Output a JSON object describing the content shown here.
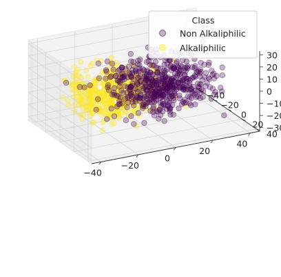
{
  "chart_data": {
    "type": "scatter",
    "projection": "3d",
    "title": "",
    "xlabel": "",
    "ylabel": "",
    "zlabel": "",
    "xlim": [
      -45,
      45
    ],
    "ylim": [
      -45,
      45
    ],
    "zlim": [
      -33,
      33
    ],
    "x_ticks": [
      "−40",
      "−20",
      "0",
      "20",
      "40"
    ],
    "y_ticks": [
      "−40",
      "−20",
      "0",
      "20",
      "40"
    ],
    "z_ticks": [
      "−30",
      "−20",
      "−10",
      "0",
      "10",
      "20",
      "30"
    ],
    "grid": true,
    "legend": {
      "title": "Class",
      "placement": "top-right",
      "entries": [
        "Non Alkaliphilic",
        "Alkaliphilic"
      ]
    },
    "series": [
      {
        "name": "Non Alkaliphilic",
        "color": "#440154",
        "alpha": 0.3,
        "cluster_center": [
          5,
          8,
          3
        ],
        "spread": [
          13,
          12,
          11
        ],
        "approx_count": 520
      },
      {
        "name": "Alkaliphilic",
        "color": "#fde725",
        "alpha": 0.3,
        "cluster_center": [
          -12,
          -10,
          -6
        ],
        "spread": [
          12,
          12,
          10
        ],
        "approx_count": 480
      }
    ]
  }
}
